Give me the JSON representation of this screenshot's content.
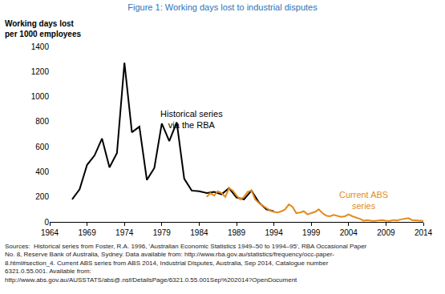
{
  "chart_data": {
    "type": "line",
    "title": "Figure 1: Working days lost to industrial disputes",
    "y_label": "Working days lost\nper 1000 employees",
    "xlim": [
      1964,
      2014
    ],
    "xticks": [
      1964,
      1969,
      1974,
      1979,
      1984,
      1989,
      1994,
      1999,
      2004,
      2009,
      2014
    ],
    "ylim": [
      0,
      1400
    ],
    "yticks": [
      0,
      200,
      400,
      600,
      800,
      1000,
      1200,
      1400
    ],
    "grid": false,
    "series": [
      {
        "name": "Historical series\nvia the RBA",
        "color": "#000000",
        "x": [
          1967,
          1968,
          1969,
          1970,
          1971,
          1972,
          1973,
          1974,
          1975,
          1976,
          1977,
          1978,
          1979,
          1980,
          1981,
          1982,
          1983,
          1984,
          1985,
          1986,
          1987,
          1988,
          1989,
          1990,
          1991,
          1992,
          1993,
          1994
        ],
        "values": [
          180,
          260,
          455,
          530,
          665,
          435,
          550,
          1270,
          715,
          760,
          335,
          430,
          785,
          645,
          795,
          345,
          250,
          245,
          230,
          240,
          220,
          270,
          195,
          180,
          250,
          155,
          100,
          85
        ]
      },
      {
        "name": "Current ABS\nseries",
        "color": "#e38b1d",
        "x": [
          1985,
          1985.5,
          1986,
          1986.5,
          1987,
          1987.5,
          1988,
          1988.5,
          1989,
          1989.5,
          1990,
          1990.5,
          1991,
          1991.5,
          1992,
          1992.5,
          1993,
          1993.5,
          1994,
          1994.5,
          1995,
          1995.5,
          1996,
          1996.5,
          1997,
          1997.5,
          1998,
          1998.5,
          1999,
          1999.5,
          2000,
          2000.5,
          2001,
          2001.5,
          2002,
          2002.5,
          2003,
          2003.5,
          2004,
          2004.5,
          2005,
          2005.5,
          2006,
          2006.5,
          2007,
          2007.5,
          2008,
          2008.5,
          2009,
          2009.5,
          2010,
          2010.5,
          2011,
          2011.5,
          2012,
          2012.5,
          2013,
          2013.5,
          2014
        ],
        "values": [
          200,
          230,
          210,
          245,
          230,
          200,
          270,
          250,
          210,
          180,
          200,
          240,
          250,
          180,
          150,
          130,
          110,
          90,
          80,
          75,
          85,
          100,
          140,
          120,
          70,
          75,
          85,
          60,
          70,
          80,
          100,
          70,
          50,
          45,
          55,
          45,
          40,
          45,
          60,
          45,
          35,
          25,
          10,
          15,
          10,
          8,
          12,
          15,
          10,
          8,
          15,
          12,
          20,
          25,
          30,
          15,
          12,
          10,
          8
        ]
      }
    ],
    "annotations": [
      {
        "text": "Historical series\nvia the RBA",
        "x": 1983,
        "y": 820,
        "color": "#000000"
      },
      {
        "text": "Current ABS\nseries",
        "x": 2006,
        "y": 175,
        "color": "#e38b1d"
      }
    ],
    "source": "Sources:  Historical series from Foster, R.A. 1996, 'Australian Economic Statistics 1949–50 to 1994–95', RBA Occasional Paper\nNo. 8, Reserve Bank of Australia, Sydney. Data available from: http://www.rba.gov.au/statistics/frequency/occ-paper-\n8.html#section_4. Current ABS series from ABS 2014, Industrial Disputes, Australia, Sep 2014, Catalogue number\n6321.0.55.001. Available from:\nhttp://www.abs.gov.au/AUSSTATS/abs@.nsf/DetailsPage/6321.0.55.001Sep%202014?OpenDocument"
  }
}
